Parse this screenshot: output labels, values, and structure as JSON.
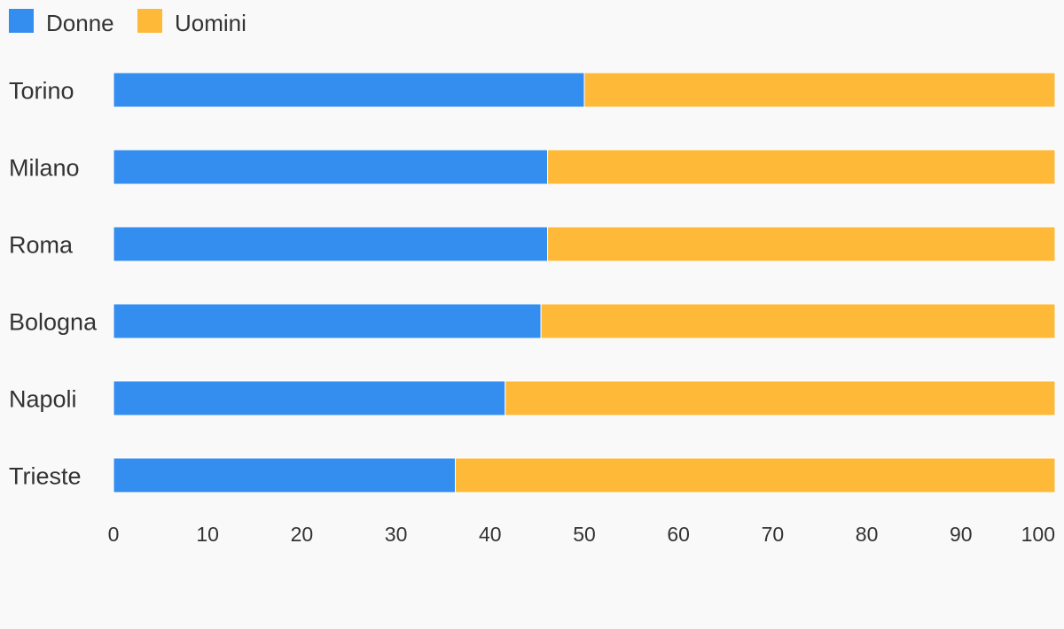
{
  "chart_data": {
    "type": "bar",
    "orientation": "horizontal",
    "stacked": true,
    "categories": [
      "Torino",
      "Milano",
      "Roma",
      "Bologna",
      "Napoli",
      "Trieste"
    ],
    "series": [
      {
        "name": "Donne",
        "color": "#348ef0",
        "values": [
          50.0,
          46.1,
          46.1,
          45.4,
          41.6,
          36.3
        ]
      },
      {
        "name": "Uomini",
        "color": "#ffb938",
        "values": [
          50.0,
          53.9,
          53.9,
          54.6,
          58.4,
          63.7
        ]
      }
    ],
    "x_ticks": [
      0,
      10,
      20,
      30,
      40,
      50,
      60,
      70,
      80,
      90,
      100
    ],
    "xlim": [
      0,
      100
    ],
    "legend_position": "top-left",
    "grid": false
  }
}
